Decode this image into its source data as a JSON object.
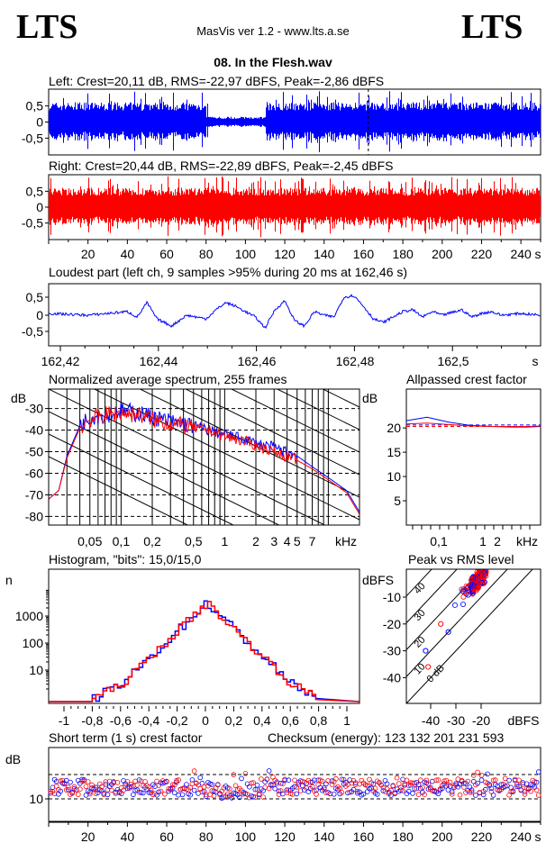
{
  "header": {
    "logo_left": "LTS",
    "logo_right": "LTS",
    "app": "MasVis ver 1.2 - www.lts.a.se",
    "file": "08. In the Flesh.wav"
  },
  "colors": {
    "left": "#0000ff",
    "right": "#ff0000"
  },
  "chart_data": [
    {
      "id": "left",
      "type": "line",
      "title": "Left: Crest=20,11 dB, RMS=-22,97 dBFS, Peak=-2,86 dBFS",
      "yticks": [
        "0,5",
        "0",
        "-0,5"
      ],
      "ylim": [
        -1,
        1
      ],
      "xlim": [
        0,
        250
      ],
      "series": [
        {
          "values": {
            "quiet_segments_s": [
              [
                80,
                110
              ]
            ],
            "peak_marker_s": 162.46
          }
        }
      ]
    },
    {
      "id": "right",
      "type": "line",
      "title": "Right: Crest=20,44 dB, RMS=-22,89 dBFS, Peak=-2,45 dBFS",
      "yticks": [
        "0,5",
        "0",
        "-0,5"
      ],
      "ylim": [
        -1,
        1
      ],
      "xlim": [
        0,
        250
      ],
      "xticks": [
        "20",
        "40",
        "60",
        "80",
        "100",
        "120",
        "140",
        "160",
        "180",
        "200",
        "220",
        "240",
        "s"
      ]
    },
    {
      "id": "loudest",
      "type": "line",
      "title": "Loudest part (left  ch, 9 samples >95% during 20 ms at 162,46 s)",
      "yticks": [
        "0,5",
        "0",
        "-0,5"
      ],
      "xlim": [
        162.415,
        162.515
      ],
      "xticks": [
        "162,42",
        "162,44",
        "162,46",
        "162,48",
        "162,5",
        "s"
      ]
    },
    {
      "id": "spectrum",
      "type": "line",
      "title": "Normalized average spectrum, 255 frames",
      "ylabel": "dB",
      "yticks": [
        "-30",
        "-40",
        "-50",
        "-60",
        "-70",
        "-80"
      ],
      "xticks": [
        "0,05",
        "0,1",
        "0,2",
        "0,5",
        "1",
        "2",
        "3",
        "4",
        "5",
        "7",
        "kHz"
      ],
      "x": [
        0.02,
        0.025,
        0.03,
        0.04,
        0.05,
        0.07,
        0.1,
        0.15,
        0.2,
        0.3,
        0.5,
        0.7,
        1,
        1.5,
        2,
        3,
        5,
        7,
        10,
        15,
        20
      ],
      "series": [
        {
          "values": [
            -72,
            -68,
            -52,
            -38,
            -34,
            -33,
            -31,
            -32,
            -34,
            -36,
            -38,
            -40,
            -42,
            -44,
            -46,
            -48,
            -52,
            -57,
            -62,
            -68,
            -78
          ]
        },
        {
          "values": [
            -72,
            -68,
            -53,
            -39,
            -35,
            -33,
            -32,
            -33,
            -35,
            -37,
            -39,
            -40,
            -43,
            -45,
            -47,
            -50,
            -54,
            -58,
            -63,
            -69,
            -79
          ]
        }
      ]
    },
    {
      "id": "allpass",
      "type": "line",
      "title": "Allpassed crest factor",
      "ylabel": "dB",
      "yticks": [
        "20",
        "15",
        "10",
        "5"
      ],
      "xticks": [
        "0,1",
        "1",
        "2",
        "kHz"
      ],
      "series": [
        {
          "values": [
            21.5,
            22.2,
            21.2,
            20.5,
            20.3,
            20.2,
            20.2,
            20.3
          ]
        },
        {
          "values": [
            20.8,
            21.0,
            20.7,
            20.4,
            20.3,
            20.3,
            20.3,
            20.4
          ]
        }
      ]
    },
    {
      "id": "histogram",
      "type": "line",
      "title": "Histogram, \"bits\": 15,0/15,0",
      "ylabel": "n",
      "yticks": [
        "1000",
        "100",
        "10"
      ],
      "xticks": [
        "-1",
        "-0,8",
        "-0,6",
        "-0,4",
        "-0,2",
        "0",
        "0,2",
        "0,4",
        "0,6",
        "0,8",
        "1"
      ],
      "x": [
        -0.78,
        -0.6,
        -0.4,
        -0.2,
        -0.1,
        0,
        0.1,
        0.2,
        0.4,
        0.6,
        0.78
      ],
      "series": [
        {
          "values": [
            1,
            3,
            30,
            300,
            1000,
            3000,
            1000,
            300,
            30,
            3,
            1
          ]
        }
      ]
    },
    {
      "id": "peakrms",
      "type": "scatter",
      "title": "Peak vs RMS level",
      "ylabel": "dBFS",
      "xlabel": "dBFS",
      "yticks": [
        "-10",
        "-20",
        "-30",
        "-40"
      ],
      "xticks": [
        "-40",
        "-30",
        "-20"
      ],
      "diagonal_labels": [
        "40",
        "30",
        "20",
        "10",
        "0 dB"
      ]
    },
    {
      "id": "shortcrest",
      "type": "scatter",
      "title": "Short term (1 s) crest factor",
      "ylabel": "dB",
      "yticks": [
        "10"
      ],
      "xlim": [
        0,
        250
      ],
      "xticks": [
        "20",
        "40",
        "60",
        "80",
        "100",
        "120",
        "140",
        "160",
        "180",
        "200",
        "220",
        "240",
        "s"
      ]
    }
  ],
  "checksum": "Checksum (energy):  123 132 201 231 593"
}
